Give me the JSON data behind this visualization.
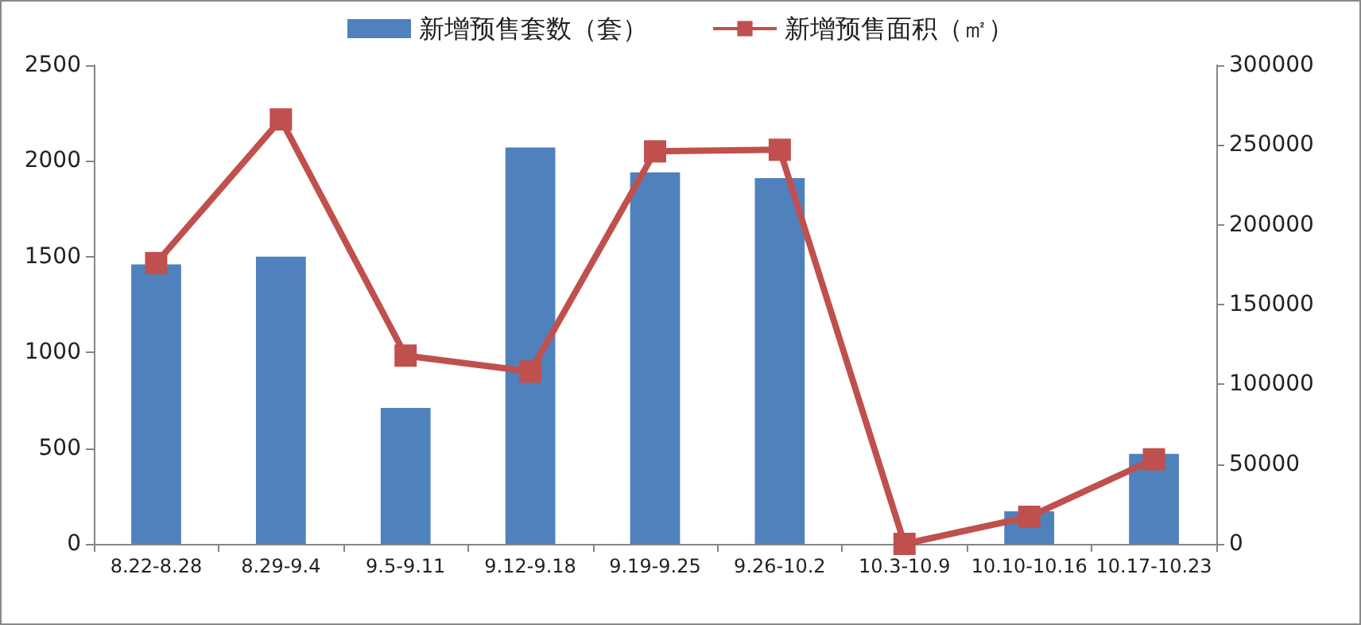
{
  "chart_data": {
    "type": "bar",
    "categories": [
      "8.22-8.28",
      "8.29-9.4",
      "9.5-9.11",
      "9.12-9.18",
      "9.19-9.25",
      "9.26-10.2",
      "10.3-10.9",
      "10.10-10.16",
      "10.17-10.23"
    ],
    "series": [
      {
        "name": "新增预售套数（套）",
        "color": "#4f81bd",
        "values": [
          1460,
          1500,
          710,
          2070,
          1940,
          1910,
          0,
          170,
          470
        ]
      },
      {
        "name": "新增预售面积（㎡）",
        "type": "line",
        "axis": "y2",
        "color": "#c0504d",
        "values": [
          176000,
          266000,
          118000,
          108000,
          246000,
          247000,
          0,
          17000,
          53000
        ]
      }
    ],
    "ylim": [
      0,
      2500
    ],
    "yticks": [
      0,
      500,
      1000,
      1500,
      2000,
      2500
    ],
    "y2lim": [
      0,
      300000
    ],
    "y2ticks": [
      0,
      50000,
      100000,
      150000,
      200000,
      250000,
      300000
    ],
    "marker": "square",
    "line_style": "solid",
    "legend": "top",
    "grid": false
  }
}
